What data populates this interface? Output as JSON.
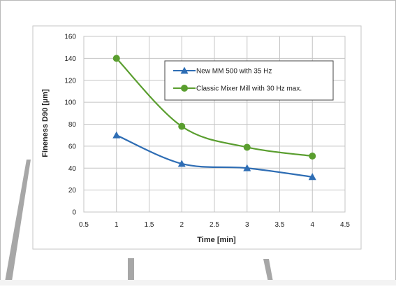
{
  "chart_data": {
    "type": "line",
    "xlabel": "Time [min]",
    "ylabel": "Fineness D90 [µm]",
    "xlim": [
      0.5,
      4.5
    ],
    "ylim": [
      0,
      160
    ],
    "xticks": [
      "0.5",
      "1",
      "1.5",
      "2",
      "2.5",
      "3",
      "3.5",
      "4",
      "4.5"
    ],
    "yticks": [
      "0",
      "20",
      "40",
      "60",
      "80",
      "100",
      "120",
      "140",
      "160"
    ],
    "grid": true,
    "legend_position": "top-right",
    "x": [
      1,
      2,
      3,
      4
    ],
    "series": [
      {
        "name": "New MM 500 with 35 Hz",
        "values": [
          70,
          44,
          40,
          32
        ],
        "color": "#2e6db4",
        "marker": "triangle"
      },
      {
        "name": "Classic Mixer Mill with 30 Hz max.",
        "values": [
          140,
          78,
          59,
          51
        ],
        "color": "#5a9e2f",
        "marker": "circle"
      }
    ]
  }
}
